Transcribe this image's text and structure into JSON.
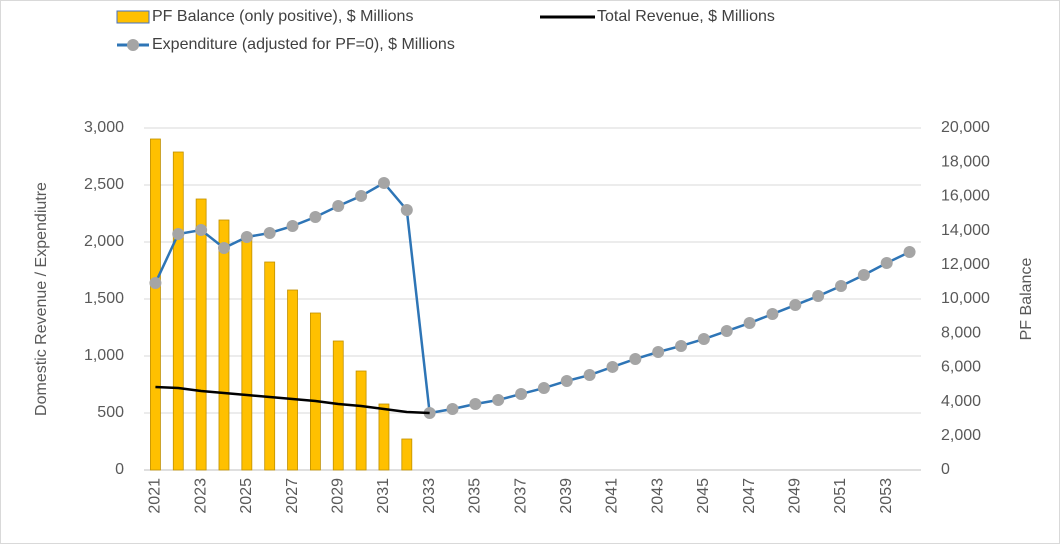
{
  "chart_data": {
    "type": "combo",
    "categories": [
      "2021",
      null,
      "2023",
      null,
      "2025",
      null,
      "2027",
      null,
      "2029",
      null,
      "2031",
      null,
      "2033",
      null,
      "2035",
      null,
      "2037",
      null,
      "2039",
      null,
      "2041",
      null,
      "2043",
      null,
      "2045",
      null,
      "2047",
      null,
      "2049",
      null,
      "2051",
      null,
      "2053",
      null
    ],
    "y_label": "Domestic Revenue / Expendiutre",
    "y2_label": "PF Balance",
    "ylim": [
      0,
      3000
    ],
    "yticks": [
      0,
      500,
      {
        "value": 1000,
        "label": "1,000"
      },
      {
        "value": 1500,
        "label": "1,500"
      },
      {
        "value": 2000,
        "label": "2,000"
      },
      {
        "value": 2500,
        "label": "2,500"
      },
      {
        "value": 3000,
        "label": "3,000"
      }
    ],
    "y2lim": [
      0,
      20000
    ],
    "y2ticks": [
      0,
      {
        "value": 2000,
        "label": "2,000"
      },
      {
        "value": 4000,
        "label": "4,000"
      },
      {
        "value": 6000,
        "label": "6,000"
      },
      {
        "value": 8000,
        "label": "8,000"
      },
      {
        "value": 10000,
        "label": "10,000"
      },
      {
        "value": 12000,
        "label": "12,000"
      },
      {
        "value": 14000,
        "label": "14,000"
      },
      {
        "value": 16000,
        "label": "16,000"
      },
      {
        "value": 18000,
        "label": "18,000"
      },
      {
        "value": 20000,
        "label": "20,000"
      }
    ],
    "grid": true,
    "series": [
      {
        "name": "PF Balance (only positive), $ Millions",
        "kind": "bar",
        "axis": "y2",
        "color": "#ffc000",
        "values": [
          19357,
          18596,
          15848,
          14620,
          13450,
          12163,
          10526,
          9181,
          7544,
          5789,
          3860,
          1813,
          null,
          null,
          null,
          null,
          null,
          null,
          null,
          null,
          null,
          null,
          null,
          null,
          null,
          null,
          null,
          null,
          null,
          null,
          null,
          null,
          null,
          null
        ]
      },
      {
        "name": "Total Revenue, $ Millions",
        "kind": "line",
        "color": "#000000",
        "values": [
          728,
          719,
          693,
          675,
          658,
          640,
          623,
          605,
          579,
          561,
          535,
          509,
          500,
          null,
          null,
          null,
          null,
          null,
          null,
          null,
          null,
          null,
          null,
          null,
          null,
          null,
          null,
          null,
          null,
          null,
          null,
          null,
          null,
          null
        ]
      },
      {
        "name": "Expenditure (adjusted for PF=0), $ Millions",
        "kind": "line-marker",
        "color": "#2e75b6",
        "marker_color": "#a5a5a5",
        "values": [
          1640,
          2070,
          2105,
          1947,
          2044,
          2079,
          2140,
          2219,
          2316,
          2404,
          2518,
          2281,
          500,
          535,
          579,
          614,
          667,
          719,
          781,
          833,
          904,
          974,
          1035,
          1088,
          1149,
          1219,
          1289,
          1368,
          1447,
          1526,
          1614,
          1711,
          1816,
          1912
        ]
      }
    ]
  }
}
